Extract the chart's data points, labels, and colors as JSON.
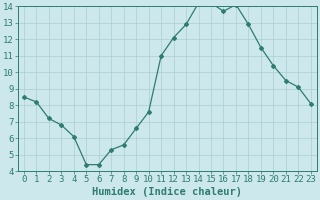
{
  "xlabel": "Humidex (Indice chaleur)",
  "x": [
    0,
    1,
    2,
    3,
    4,
    5,
    6,
    7,
    8,
    9,
    10,
    11,
    12,
    13,
    14,
    15,
    16,
    17,
    18,
    19,
    20,
    21,
    22,
    23
  ],
  "y": [
    8.5,
    8.2,
    7.2,
    6.8,
    6.1,
    4.4,
    4.4,
    5.3,
    5.6,
    6.6,
    7.6,
    11.0,
    12.1,
    12.9,
    14.2,
    14.2,
    13.7,
    14.1,
    12.9,
    11.5,
    10.4,
    9.5,
    9.1,
    8.1
  ],
  "ylim": [
    4,
    14
  ],
  "xlim": [
    -0.5,
    23.5
  ],
  "yticks": [
    4,
    5,
    6,
    7,
    8,
    9,
    10,
    11,
    12,
    13,
    14
  ],
  "xticks": [
    0,
    1,
    2,
    3,
    4,
    5,
    6,
    7,
    8,
    9,
    10,
    11,
    12,
    13,
    14,
    15,
    16,
    17,
    18,
    19,
    20,
    21,
    22,
    23
  ],
  "line_color": "#2e7d6e",
  "marker": "D",
  "marker_size": 2.0,
  "line_width": 0.9,
  "bg_color": "#cce8ec",
  "grid_color": "#aacdd2",
  "tick_color": "#2e7d6e",
  "label_color": "#2e7d6e",
  "font_size": 6.5,
  "xlabel_fontsize": 7.5
}
